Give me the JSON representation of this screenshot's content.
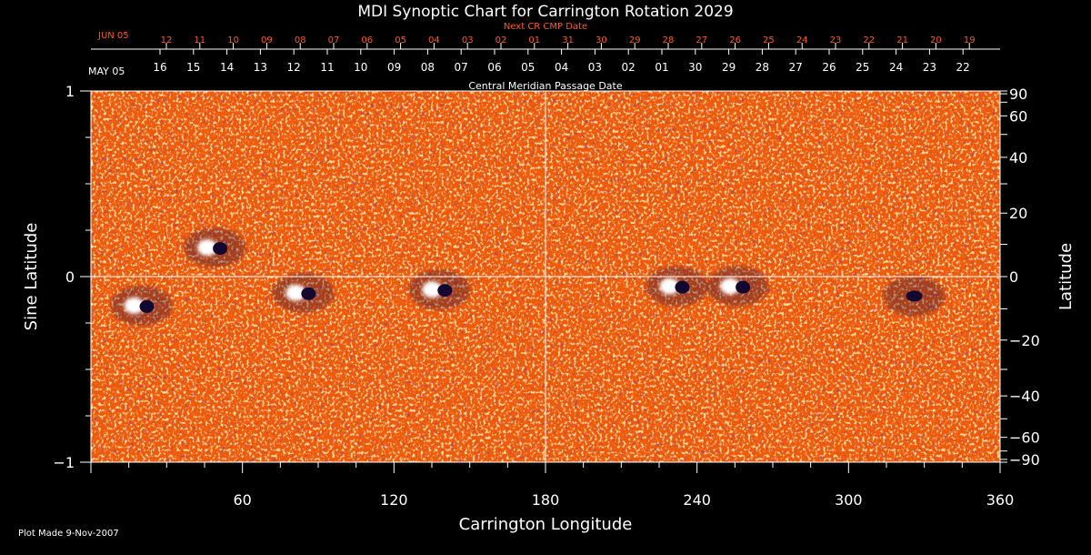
{
  "chart_data": {
    "type": "heatmap",
    "title": "MDI Synoptic Chart for Carrington Rotation 2029",
    "xlabel": "Carrington Longitude",
    "ylabel_left": "Sine Latitude",
    "ylabel_right": "Latitude",
    "xlim": [
      0,
      360
    ],
    "ylim_sine": [
      -1,
      1
    ],
    "x_ticks": [
      "60",
      "120",
      "180",
      "240",
      "300",
      "360"
    ],
    "y_left_ticks": [
      "1",
      "0",
      "−1"
    ],
    "y_right_ticks": [
      "90",
      "60",
      "40",
      "20",
      "0",
      "−20",
      "−40",
      "−60",
      "−90"
    ],
    "y_right_values": [
      90,
      60,
      40,
      20,
      0,
      -20,
      -40,
      -60,
      -90
    ],
    "grid": "crosshair at longitude 180 and latitude 0",
    "next_cr_axis": {
      "label": "Next CR CMP Date",
      "month_label": "JUN 05",
      "ticks": [
        "12",
        "11",
        "10",
        "09",
        "08",
        "07",
        "06",
        "05",
        "04",
        "03",
        "02",
        "01",
        "31",
        "30",
        "29",
        "28",
        "27",
        "26",
        "25",
        "24",
        "23",
        "22",
        "21",
        "20",
        "19"
      ]
    },
    "cmp_axis": {
      "label": "Central Meridian Passage Date",
      "month_label": "MAY 05",
      "ticks": [
        "16",
        "15",
        "14",
        "13",
        "12",
        "11",
        "10",
        "09",
        "08",
        "07",
        "06",
        "05",
        "04",
        "03",
        "02",
        "01",
        "30",
        "29",
        "28",
        "27",
        "26",
        "25",
        "24",
        "23",
        "22"
      ]
    },
    "regions": [
      {
        "lon": 49,
        "lat": 9,
        "polarity": "bipolar"
      },
      {
        "lon": 20,
        "lat": -9,
        "polarity": "bipolar"
      },
      {
        "lon": 84,
        "lat": -5,
        "polarity": "bipolar"
      },
      {
        "lon": 138,
        "lat": -4,
        "polarity": "bipolar"
      },
      {
        "lon": 232,
        "lat": -3,
        "polarity": "bipolar"
      },
      {
        "lon": 256,
        "lat": -3,
        "polarity": "bipolar"
      },
      {
        "lon": 326,
        "lat": -6,
        "polarity": "negative"
      }
    ],
    "colors": {
      "background": "#000000",
      "map_base": "#ee5a0a",
      "positive": "#ffffff",
      "negative": "#1a1050",
      "axis_orange": "#ff5a1a",
      "text": "#ffffff"
    }
  },
  "footer": {
    "plot_made": "Plot Made  9-Nov-2007"
  }
}
